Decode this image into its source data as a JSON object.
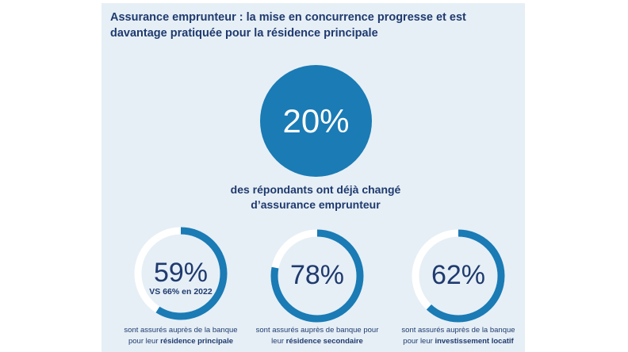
{
  "title": "Assurance emprunteur : la mise en concurrence progresse et est davantage pratiquée pour la résidence principale",
  "colors": {
    "accent": "#1a7bb5",
    "track": "#ffffff",
    "text": "#1f3a6e",
    "panel": "#e6eff6"
  },
  "headline": {
    "value": "20%",
    "caption_line1": "des répondants ont déjà changé",
    "caption_line2": "d’assurance emprunteur"
  },
  "chart_data": {
    "type": "donut",
    "title": "Assurance emprunteur : la mise en concurrence progresse et est davantage pratiquée pour la résidence principale",
    "series": [
      {
        "value": 59,
        "label": "59%",
        "sub": "VS 66% en 2022",
        "caption_pre": "sont assurés auprès de la banque",
        "caption_mid": "pour leur ",
        "caption_bold": "résidence principale"
      },
      {
        "value": 78,
        "label": "78%",
        "sub": "",
        "caption_pre": "sont assurés auprès de banque pour",
        "caption_mid": "leur ",
        "caption_bold": "résidence secondaire"
      },
      {
        "value": 62,
        "label": "62%",
        "sub": "",
        "caption_pre": "sont assurés auprès de la banque",
        "caption_mid": "pour leur ",
        "caption_bold": "investissement locatif"
      }
    ]
  }
}
